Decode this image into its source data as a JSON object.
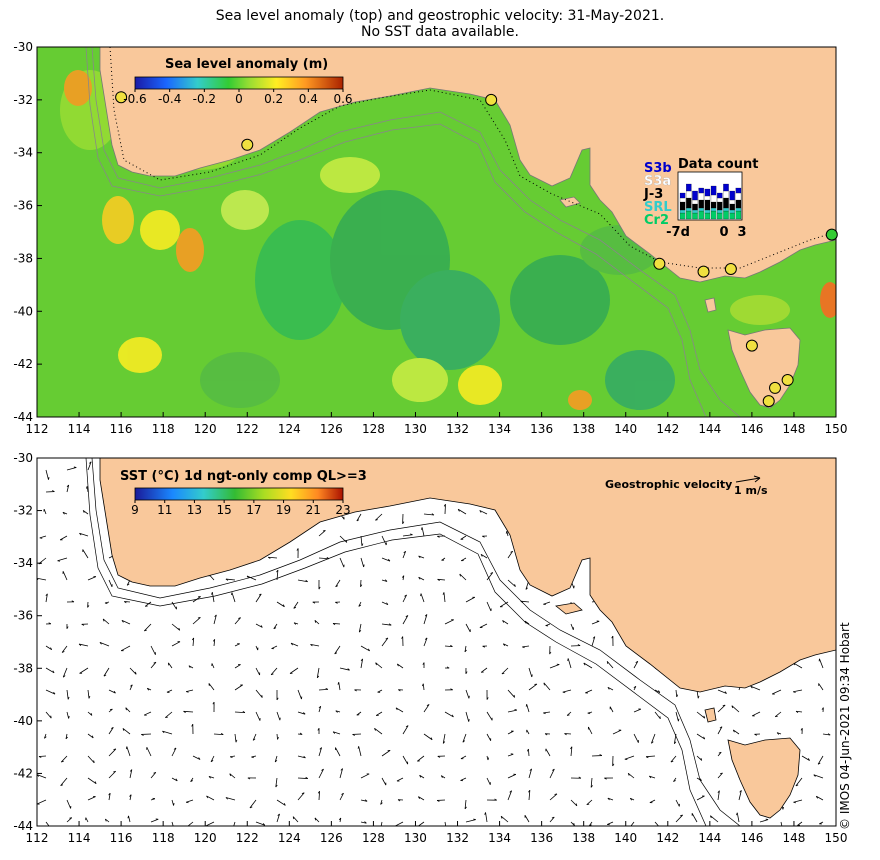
{
  "title": {
    "line1": "Sea level anomaly (top) and geostrophic velocity: 31-May-2021.",
    "line2": "No SST data available."
  },
  "top_panel": {
    "legend_title": "Sea level anomaly (m)",
    "colorbar_ticks": [
      "-0.6",
      "-0.4",
      "-0.2",
      "0",
      "0.2",
      "0.4",
      "0.6"
    ],
    "data_count": {
      "title": "Data count",
      "satellites": [
        "S3b",
        "S3a",
        "J-3",
        "SRL",
        "Cr2"
      ],
      "satellite_colors": [
        "#0000cc",
        "#ffffff",
        "#000000",
        "#33cccc",
        "#00cc66"
      ],
      "x_ticks": [
        "-7d",
        "0",
        "3"
      ]
    },
    "tide_gauge_color": "#f0e040"
  },
  "bottom_panel": {
    "legend_title": "SST (°C) 1d ngt-only comp QL>=3",
    "colorbar_ticks": [
      "9",
      "11",
      "13",
      "15",
      "17",
      "19",
      "21",
      "23"
    ],
    "velocity_label": "Geostrophic velocity",
    "velocity_scale": "1 m/s"
  },
  "axes": {
    "x_ticks": [
      "112",
      "114",
      "116",
      "118",
      "120",
      "122",
      "124",
      "126",
      "128",
      "130",
      "132",
      "134",
      "136",
      "138",
      "140",
      "142",
      "144",
      "146",
      "148",
      "150"
    ],
    "y_ticks": [
      "-30",
      "-32",
      "-34",
      "-36",
      "-38",
      "-40",
      "-42",
      "-44"
    ],
    "lon_range": [
      112,
      150
    ],
    "lat_range": [
      -44,
      -30
    ]
  },
  "colors": {
    "land": "#f9c89b",
    "ocean_base": "#66cc33"
  },
  "credit": "© IMOS 04-Jun-2021 09:34 Hobart"
}
